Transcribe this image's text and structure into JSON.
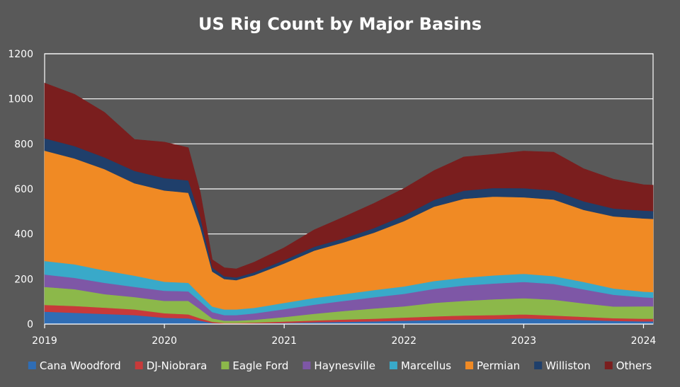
{
  "chart_data": {
    "type": "area",
    "stacked": true,
    "title": "US Rig Count by Major Basins",
    "xlabel": "",
    "ylabel": "",
    "ylim": [
      0,
      1200
    ],
    "yticks": [
      0,
      200,
      400,
      600,
      800,
      1000,
      1200
    ],
    "xlim": [
      2019,
      2024.08
    ],
    "xtick_labels": [
      "2019",
      "2020",
      "2021",
      "2022",
      "2023",
      "2024"
    ],
    "xtick_values": [
      2019,
      2020,
      2021,
      2022,
      2023,
      2024
    ],
    "grid": true,
    "legend_position": "bottom",
    "x": [
      2019.0,
      2019.25,
      2019.5,
      2019.75,
      2020.0,
      2020.2,
      2020.3,
      2020.4,
      2020.5,
      2020.6,
      2020.75,
      2021.0,
      2021.25,
      2021.5,
      2021.75,
      2022.0,
      2022.25,
      2022.5,
      2022.75,
      2023.0,
      2023.25,
      2023.5,
      2023.75,
      2024.0,
      2024.08
    ],
    "series": [
      {
        "name": "Cana Woodford",
        "color": "#2f6db5",
        "values": [
          55,
          50,
          45,
          40,
          28,
          25,
          15,
          5,
          2,
          2,
          3,
          5,
          8,
          10,
          12,
          15,
          18,
          20,
          22,
          25,
          22,
          18,
          14,
          12,
          12
        ]
      },
      {
        "name": "DJ-Niobrara",
        "color": "#c83a3a",
        "values": [
          30,
          30,
          28,
          25,
          20,
          18,
          10,
          5,
          3,
          3,
          4,
          6,
          8,
          10,
          12,
          14,
          16,
          18,
          18,
          18,
          16,
          14,
          12,
          12,
          12
        ]
      },
      {
        "name": "Eagle Ford",
        "color": "#8cb84a",
        "values": [
          80,
          75,
          60,
          55,
          55,
          60,
          40,
          15,
          10,
          10,
          12,
          20,
          30,
          38,
          45,
          50,
          60,
          65,
          70,
          72,
          70,
          60,
          52,
          55,
          55
        ]
      },
      {
        "name": "Haynesville",
        "color": "#7e57a6",
        "values": [
          55,
          50,
          50,
          45,
          45,
          42,
          35,
          28,
          25,
          25,
          28,
          35,
          40,
          45,
          50,
          55,
          62,
          68,
          70,
          72,
          70,
          62,
          52,
          40,
          38
        ]
      },
      {
        "name": "Marcellus",
        "color": "#39a9c9",
        "values": [
          60,
          60,
          55,
          50,
          40,
          38,
          30,
          25,
          25,
          25,
          25,
          28,
          30,
          30,
          32,
          33,
          35,
          35,
          36,
          36,
          35,
          33,
          28,
          25,
          25
        ]
      },
      {
        "name": "Permian",
        "color": "#f08a24",
        "values": [
          490,
          470,
          450,
          410,
          405,
          400,
          300,
          155,
          135,
          130,
          145,
          175,
          210,
          230,
          255,
          290,
          330,
          350,
          350,
          340,
          340,
          320,
          320,
          325,
          325
        ]
      },
      {
        "name": "Williston",
        "color": "#1f3f6b",
        "values": [
          55,
          55,
          52,
          55,
          55,
          55,
          45,
          18,
          12,
          12,
          13,
          15,
          17,
          18,
          20,
          25,
          30,
          36,
          38,
          40,
          40,
          38,
          35,
          35,
          35
        ]
      },
      {
        "name": "Others",
        "color": "#7a1e1e",
        "values": [
          245,
          230,
          200,
          140,
          160,
          145,
          110,
          35,
          38,
          38,
          45,
          55,
          75,
          95,
          110,
          120,
          130,
          150,
          150,
          165,
          170,
          145,
          130,
          115,
          115
        ]
      }
    ]
  }
}
